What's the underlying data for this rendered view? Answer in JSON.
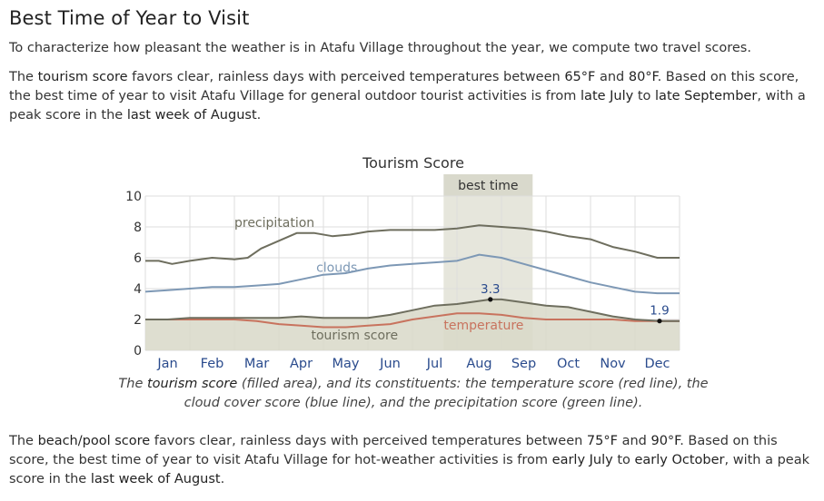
{
  "heading": "Best Time of Year to Visit",
  "intro": "To characterize how pleasant the weather is in Atafu Village throughout the year, we compute two travel scores.",
  "tourism_paragraph": {
    "t1": "The ",
    "h1": "tourism score",
    "t2": " favors clear, rainless days with perceived temperatures between ",
    "h2": "65°F",
    "t3": " and ",
    "h3": "80°F",
    "t4": ". Based on this score, the best time of year to visit Atafu Village for general outdoor tourist activities is from ",
    "h4": "late July",
    "t5": " to ",
    "h5": "late September",
    "t6": ", with a peak score in the ",
    "h6": "last week of August",
    "t7": "."
  },
  "caption": {
    "t1": "The ",
    "h1": "tourism score",
    "t2": " (filled area), and its constituents: the temperature score (red line), the cloud cover score (blue line), and the precipitation score (green line)."
  },
  "beach_paragraph": {
    "t1": "The ",
    "h1": "beach/pool score",
    "t2": " favors clear, rainless days with perceived temperatures between ",
    "h2": "75°F",
    "t3": " and ",
    "h3": "90°F",
    "t4": ". Based on this score, the best time of year to visit Atafu Village for hot-weather activities is from ",
    "h4": "early July",
    "t5": " to ",
    "h5": "early October",
    "t6": ", with a peak score in the ",
    "h6": "last week of August",
    "t7": "."
  },
  "chart_data": {
    "type": "area",
    "title": "Tourism Score",
    "ylim": [
      0,
      10
    ],
    "yticks": [
      0,
      2,
      4,
      6,
      8,
      10
    ],
    "xlim": [
      0,
      12
    ],
    "categories": [
      "Jan",
      "Feb",
      "Mar",
      "Apr",
      "May",
      "Jun",
      "Jul",
      "Aug",
      "Sep",
      "Oct",
      "Nov",
      "Dec"
    ],
    "best_time": {
      "label": "best time",
      "start": 6.7,
      "end": 8.7
    },
    "annotations": [
      {
        "label": "3.3",
        "x": 7.75,
        "y": 3.3
      },
      {
        "label": "1.9",
        "x": 11.55,
        "y": 1.9
      }
    ],
    "series": [
      {
        "name": "precipitation",
        "color": "#6e6e5e",
        "x": [
          0,
          0.3,
          0.6,
          1.0,
          1.5,
          2.0,
          2.3,
          2.6,
          3.0,
          3.4,
          3.8,
          4.2,
          4.6,
          5.0,
          5.5,
          6.0,
          6.5,
          7.0,
          7.5,
          8.0,
          8.5,
          9.0,
          9.5,
          10.0,
          10.5,
          11.0,
          11.5,
          12.0
        ],
        "values": [
          5.8,
          5.8,
          5.6,
          5.8,
          6.0,
          5.9,
          6.0,
          6.6,
          7.1,
          7.6,
          7.6,
          7.4,
          7.5,
          7.7,
          7.8,
          7.8,
          7.8,
          7.9,
          8.1,
          8.0,
          7.9,
          7.7,
          7.4,
          7.2,
          6.7,
          6.4,
          6.0,
          6.0
        ]
      },
      {
        "name": "clouds",
        "color": "#7d98b5",
        "x": [
          0,
          0.5,
          1.0,
          1.5,
          2.0,
          2.5,
          3.0,
          3.5,
          4.0,
          4.5,
          5.0,
          5.5,
          6.0,
          6.5,
          7.0,
          7.5,
          8.0,
          8.5,
          9.0,
          9.5,
          10.0,
          10.5,
          11.0,
          11.5,
          12.0
        ],
        "values": [
          3.8,
          3.9,
          4.0,
          4.1,
          4.1,
          4.2,
          4.3,
          4.6,
          4.9,
          5.0,
          5.3,
          5.5,
          5.6,
          5.7,
          5.8,
          6.2,
          6.0,
          5.6,
          5.2,
          4.8,
          4.4,
          4.1,
          3.8,
          3.7,
          3.7
        ]
      },
      {
        "name": "temperature",
        "color": "#c8735e",
        "x": [
          0,
          0.5,
          1.0,
          1.5,
          2.0,
          2.5,
          3.0,
          3.5,
          4.0,
          4.5,
          5.0,
          5.5,
          6.0,
          6.5,
          7.0,
          7.5,
          8.0,
          8.5,
          9.0,
          9.5,
          10.0,
          10.5,
          11.0,
          11.5,
          12.0
        ],
        "values": [
          2.0,
          2.0,
          2.0,
          2.0,
          2.0,
          1.9,
          1.7,
          1.6,
          1.5,
          1.5,
          1.6,
          1.7,
          2.0,
          2.2,
          2.4,
          2.4,
          2.3,
          2.1,
          2.0,
          2.0,
          2.0,
          2.0,
          1.9,
          1.9,
          1.9
        ]
      },
      {
        "name": "tourism score",
        "color": "#6e6e5e",
        "fill": "#d8d8c8",
        "x": [
          0,
          0.5,
          1.0,
          1.5,
          2.0,
          2.5,
          3.0,
          3.5,
          4.0,
          4.5,
          5.0,
          5.5,
          6.0,
          6.5,
          7.0,
          7.5,
          7.75,
          8.0,
          8.5,
          9.0,
          9.5,
          10.0,
          10.5,
          11.0,
          11.55,
          12.0
        ],
        "values": [
          2.0,
          2.0,
          2.1,
          2.1,
          2.1,
          2.1,
          2.1,
          2.2,
          2.1,
          2.1,
          2.1,
          2.3,
          2.6,
          2.9,
          3.0,
          3.2,
          3.3,
          3.3,
          3.1,
          2.9,
          2.8,
          2.5,
          2.2,
          2.0,
          1.9,
          1.9
        ]
      }
    ],
    "series_labels": [
      {
        "text": "precipitation",
        "x": 2.9,
        "y": 8.0,
        "color": "#6e6e5e"
      },
      {
        "text": "clouds",
        "x": 4.3,
        "y": 5.1,
        "color": "#7d98b5"
      },
      {
        "text": "temperature",
        "x": 7.6,
        "y": 1.35,
        "color": "#c8735e"
      },
      {
        "text": "tourism score",
        "x": 4.7,
        "y": 0.7,
        "color": "#6e6e5e"
      }
    ],
    "colors": {
      "grid": "#dddddd",
      "band": "#e6e6dc",
      "band_header": "#d9d9cc",
      "month_label": "#2a4b8d"
    }
  }
}
